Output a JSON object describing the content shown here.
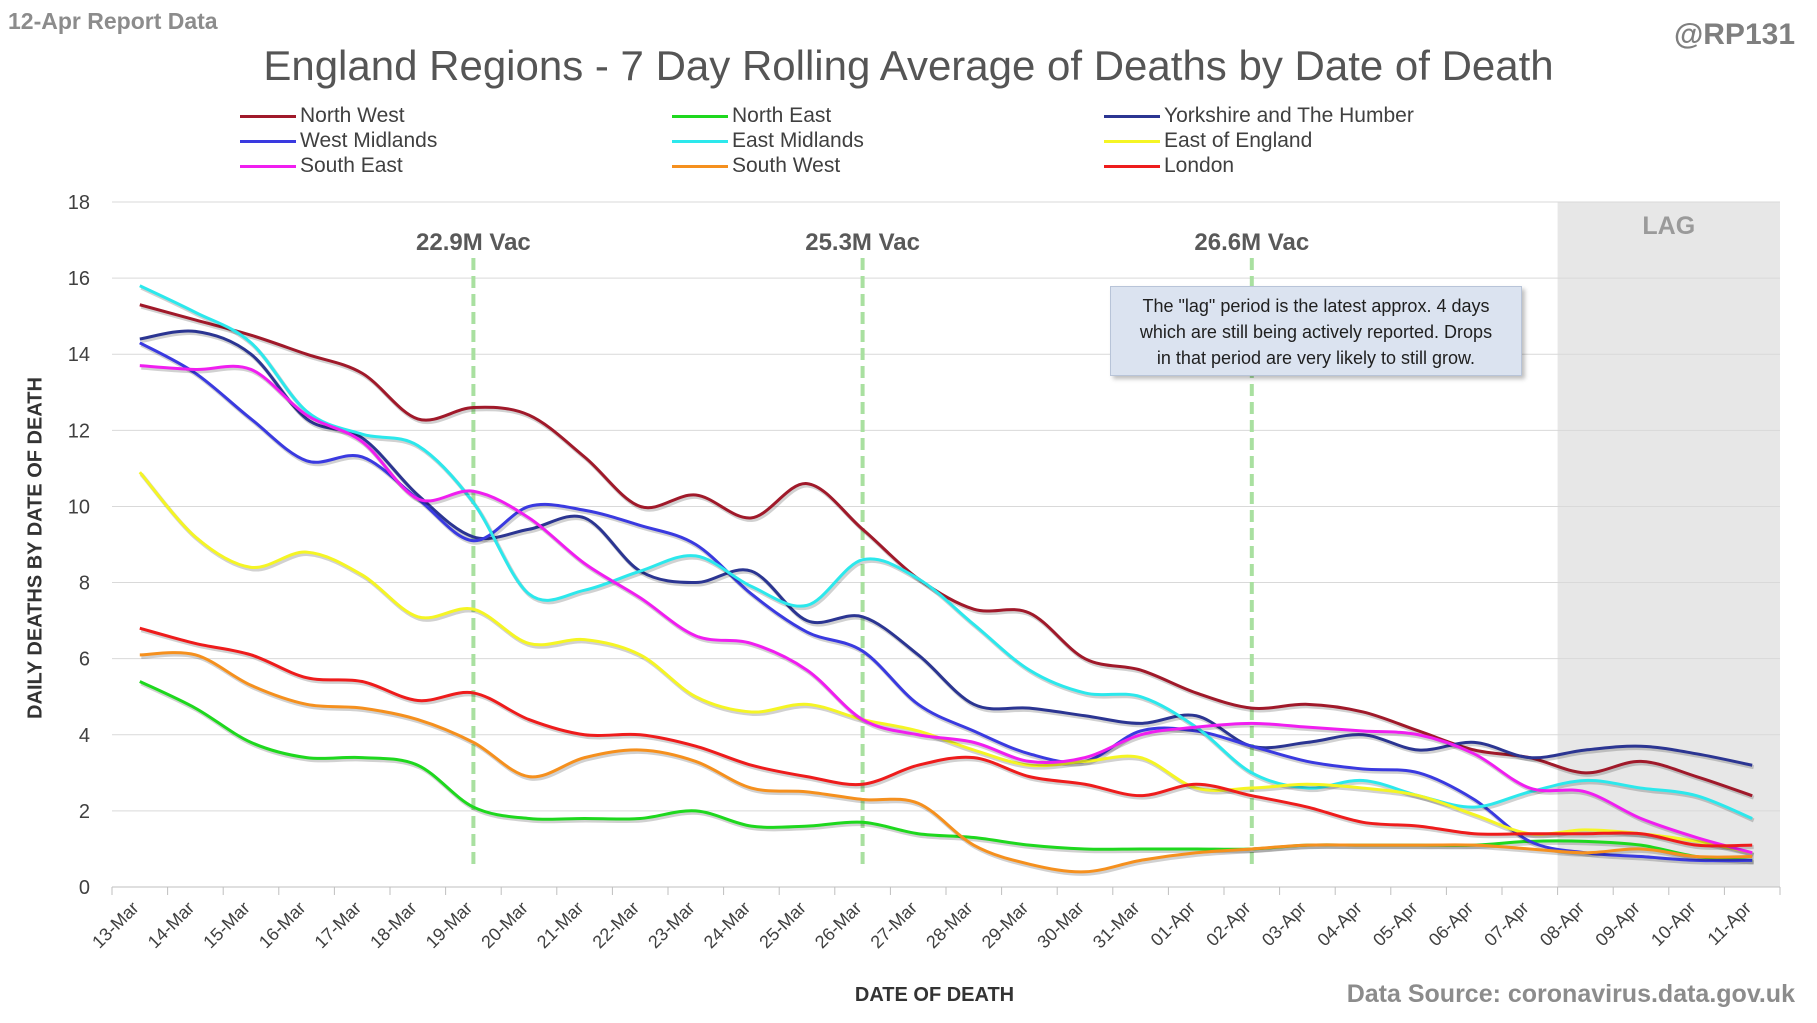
{
  "header": {
    "report_note": "12-Apr Report Data",
    "handle": "@RP131",
    "source": "Data Source: coronavirus.data.gov.uk"
  },
  "note_box": {
    "lines": [
      "The \"lag\" period is the latest approx. 4 days",
      "which are still being actively reported. Drops",
      "in that period are very likely to still grow."
    ]
  },
  "chart_data": {
    "type": "line",
    "title": "England Regions - 7 Day Rolling Average of Deaths by Date of Death",
    "xlabel": "DATE OF DEATH",
    "ylabel": "DAILY DEATHS BY DATE OF DEATH",
    "ylim": [
      0,
      18
    ],
    "yticks": [
      0,
      2,
      4,
      6,
      8,
      10,
      12,
      14,
      16,
      18
    ],
    "grid": true,
    "legend": "top",
    "categories": [
      "13-Mar",
      "14-Mar",
      "15-Mar",
      "16-Mar",
      "17-Mar",
      "18-Mar",
      "19-Mar",
      "20-Mar",
      "21-Mar",
      "22-Mar",
      "23-Mar",
      "24-Mar",
      "25-Mar",
      "26-Mar",
      "27-Mar",
      "28-Mar",
      "29-Mar",
      "30-Mar",
      "31-Mar",
      "01-Apr",
      "02-Apr",
      "03-Apr",
      "04-Apr",
      "05-Apr",
      "06-Apr",
      "07-Apr",
      "08-Apr",
      "09-Apr",
      "10-Apr",
      "11-Apr"
    ],
    "lag": {
      "label": "LAG",
      "start": "08-Apr",
      "end": "11-Apr"
    },
    "vac_markers": [
      {
        "at": "19-Mar",
        "label": "22.9M Vac"
      },
      {
        "at": "26-Mar",
        "label": "25.3M Vac"
      },
      {
        "at": "02-Apr",
        "label": "26.6M Vac"
      }
    ],
    "series": [
      {
        "name": "North West",
        "color": "#a0192a",
        "values": [
          15.3,
          14.9,
          14.5,
          14.0,
          13.5,
          12.3,
          12.6,
          12.4,
          11.3,
          10.0,
          10.3,
          9.7,
          10.6,
          9.4,
          8.1,
          7.3,
          7.2,
          6.0,
          5.7,
          5.1,
          4.7,
          4.8,
          4.6,
          4.1,
          3.6,
          3.4,
          3.0,
          3.3,
          2.9,
          2.4
        ]
      },
      {
        "name": "North East",
        "color": "#1ed81e",
        "values": [
          5.4,
          4.7,
          3.8,
          3.4,
          3.4,
          3.2,
          2.1,
          1.8,
          1.8,
          1.8,
          2.0,
          1.6,
          1.6,
          1.7,
          1.4,
          1.3,
          1.1,
          1.0,
          1.0,
          1.0,
          1.0,
          1.1,
          1.1,
          1.1,
          1.1,
          1.2,
          1.2,
          1.1,
          0.8,
          0.7
        ]
      },
      {
        "name": "Yorkshire and The Humber",
        "color": "#2b3592",
        "values": [
          14.4,
          14.6,
          14.0,
          12.3,
          11.8,
          10.3,
          9.2,
          9.4,
          9.7,
          8.3,
          8.0,
          8.3,
          7.0,
          7.1,
          6.1,
          4.8,
          4.7,
          4.5,
          4.3,
          4.5,
          3.7,
          3.8,
          4.0,
          3.6,
          3.8,
          3.4,
          3.6,
          3.7,
          3.5,
          3.2
        ]
      },
      {
        "name": "West Midlands",
        "color": "#3a3ae0",
        "values": [
          14.3,
          13.5,
          12.3,
          11.2,
          11.3,
          10.2,
          9.1,
          10.0,
          9.9,
          9.5,
          9.0,
          7.7,
          6.7,
          6.2,
          4.8,
          4.1,
          3.5,
          3.3,
          4.1,
          4.1,
          3.7,
          3.3,
          3.1,
          3.0,
          2.3,
          1.2,
          0.9,
          0.8,
          0.7,
          0.7
        ]
      },
      {
        "name": "East Midlands",
        "color": "#2ce8ec",
        "values": [
          15.8,
          15.1,
          14.3,
          12.5,
          11.9,
          11.6,
          10.1,
          7.7,
          7.8,
          8.3,
          8.7,
          7.9,
          7.4,
          8.6,
          8.1,
          6.9,
          5.7,
          5.1,
          5.0,
          4.2,
          3.0,
          2.6,
          2.8,
          2.4,
          2.1,
          2.5,
          2.8,
          2.6,
          2.4,
          1.8
        ]
      },
      {
        "name": "East of England",
        "color": "#f5f524",
        "values": [
          10.9,
          9.2,
          8.4,
          8.8,
          8.2,
          7.1,
          7.3,
          6.4,
          6.5,
          6.1,
          5.0,
          4.6,
          4.8,
          4.4,
          4.1,
          3.6,
          3.2,
          3.3,
          3.4,
          2.6,
          2.6,
          2.7,
          2.6,
          2.4,
          1.9,
          1.4,
          1.5,
          1.4,
          1.2,
          0.9
        ]
      },
      {
        "name": "South East",
        "color": "#f01ef0",
        "values": [
          13.7,
          13.6,
          13.6,
          12.4,
          11.7,
          10.2,
          10.4,
          9.7,
          8.5,
          7.6,
          6.6,
          6.4,
          5.7,
          4.4,
          4.0,
          3.8,
          3.3,
          3.4,
          4.0,
          4.2,
          4.3,
          4.2,
          4.1,
          4.0,
          3.5,
          2.6,
          2.5,
          1.8,
          1.3,
          0.9
        ]
      },
      {
        "name": "South West",
        "color": "#f5901e",
        "values": [
          6.1,
          6.1,
          5.3,
          4.8,
          4.7,
          4.4,
          3.8,
          2.9,
          3.4,
          3.6,
          3.3,
          2.6,
          2.5,
          2.3,
          2.2,
          1.1,
          0.6,
          0.4,
          0.7,
          0.9,
          1.0,
          1.1,
          1.1,
          1.1,
          1.1,
          1.0,
          0.9,
          1.0,
          0.8,
          0.8
        ]
      },
      {
        "name": "London",
        "color": "#ee1c1c",
        "values": [
          6.8,
          6.4,
          6.1,
          5.5,
          5.4,
          4.9,
          5.1,
          4.4,
          4.0,
          4.0,
          3.7,
          3.2,
          2.9,
          2.7,
          3.2,
          3.4,
          2.9,
          2.7,
          2.4,
          2.7,
          2.4,
          2.1,
          1.7,
          1.6,
          1.4,
          1.4,
          1.4,
          1.4,
          1.1,
          1.1
        ]
      }
    ]
  }
}
